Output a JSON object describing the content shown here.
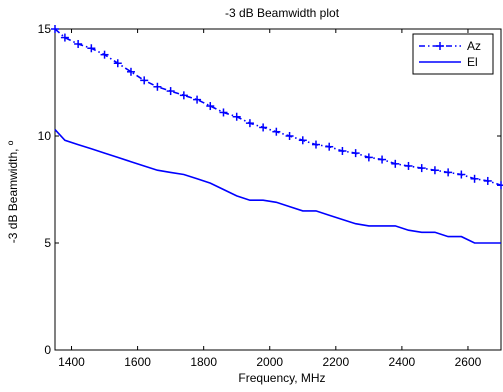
{
  "chart_data": {
    "type": "line",
    "title": "-3 dB  Beamwidth plot",
    "xlabel": "Frequency, MHz",
    "ylabel": "-3 dB Beamwidth, º",
    "xlim": [
      1350,
      2700
    ],
    "ylim": [
      0,
      15
    ],
    "xticks": [
      1400,
      1600,
      1800,
      2000,
      2200,
      2400,
      2600
    ],
    "yticks": [
      0,
      5,
      10,
      15
    ],
    "grid": true,
    "grid_style": "dotted",
    "legend_position": "top-right",
    "series": [
      {
        "name": "Az",
        "color": "#0000ff",
        "line_style": "dash-dot",
        "marker": "plus",
        "x": [
          1350,
          1380,
          1420,
          1460,
          1500,
          1540,
          1580,
          1620,
          1660,
          1700,
          1740,
          1780,
          1820,
          1860,
          1900,
          1940,
          1980,
          2020,
          2060,
          2100,
          2140,
          2180,
          2220,
          2260,
          2300,
          2340,
          2380,
          2420,
          2460,
          2500,
          2540,
          2580,
          2620,
          2660,
          2700
        ],
        "y": [
          15.0,
          14.6,
          14.3,
          14.1,
          13.8,
          13.4,
          13.0,
          12.6,
          12.3,
          12.1,
          11.9,
          11.7,
          11.4,
          11.1,
          10.9,
          10.6,
          10.4,
          10.2,
          10.0,
          9.8,
          9.6,
          9.5,
          9.3,
          9.2,
          9.0,
          8.9,
          8.7,
          8.6,
          8.5,
          8.4,
          8.3,
          8.2,
          8.0,
          7.9,
          7.7
        ]
      },
      {
        "name": "El",
        "color": "#0000ff",
        "line_style": "solid",
        "marker": "none",
        "x": [
          1350,
          1380,
          1420,
          1460,
          1500,
          1540,
          1580,
          1620,
          1660,
          1700,
          1740,
          1780,
          1820,
          1860,
          1900,
          1940,
          1980,
          2020,
          2060,
          2100,
          2140,
          2180,
          2220,
          2260,
          2300,
          2340,
          2380,
          2420,
          2460,
          2500,
          2540,
          2580,
          2620,
          2660,
          2700
        ],
        "y": [
          10.3,
          9.8,
          9.6,
          9.4,
          9.2,
          9.0,
          8.8,
          8.6,
          8.4,
          8.3,
          8.2,
          8.0,
          7.8,
          7.5,
          7.2,
          7.0,
          7.0,
          6.9,
          6.7,
          6.5,
          6.5,
          6.3,
          6.1,
          5.9,
          5.8,
          5.8,
          5.8,
          5.6,
          5.5,
          5.5,
          5.3,
          5.3,
          5.0,
          5.0,
          5.0
        ]
      }
    ]
  }
}
